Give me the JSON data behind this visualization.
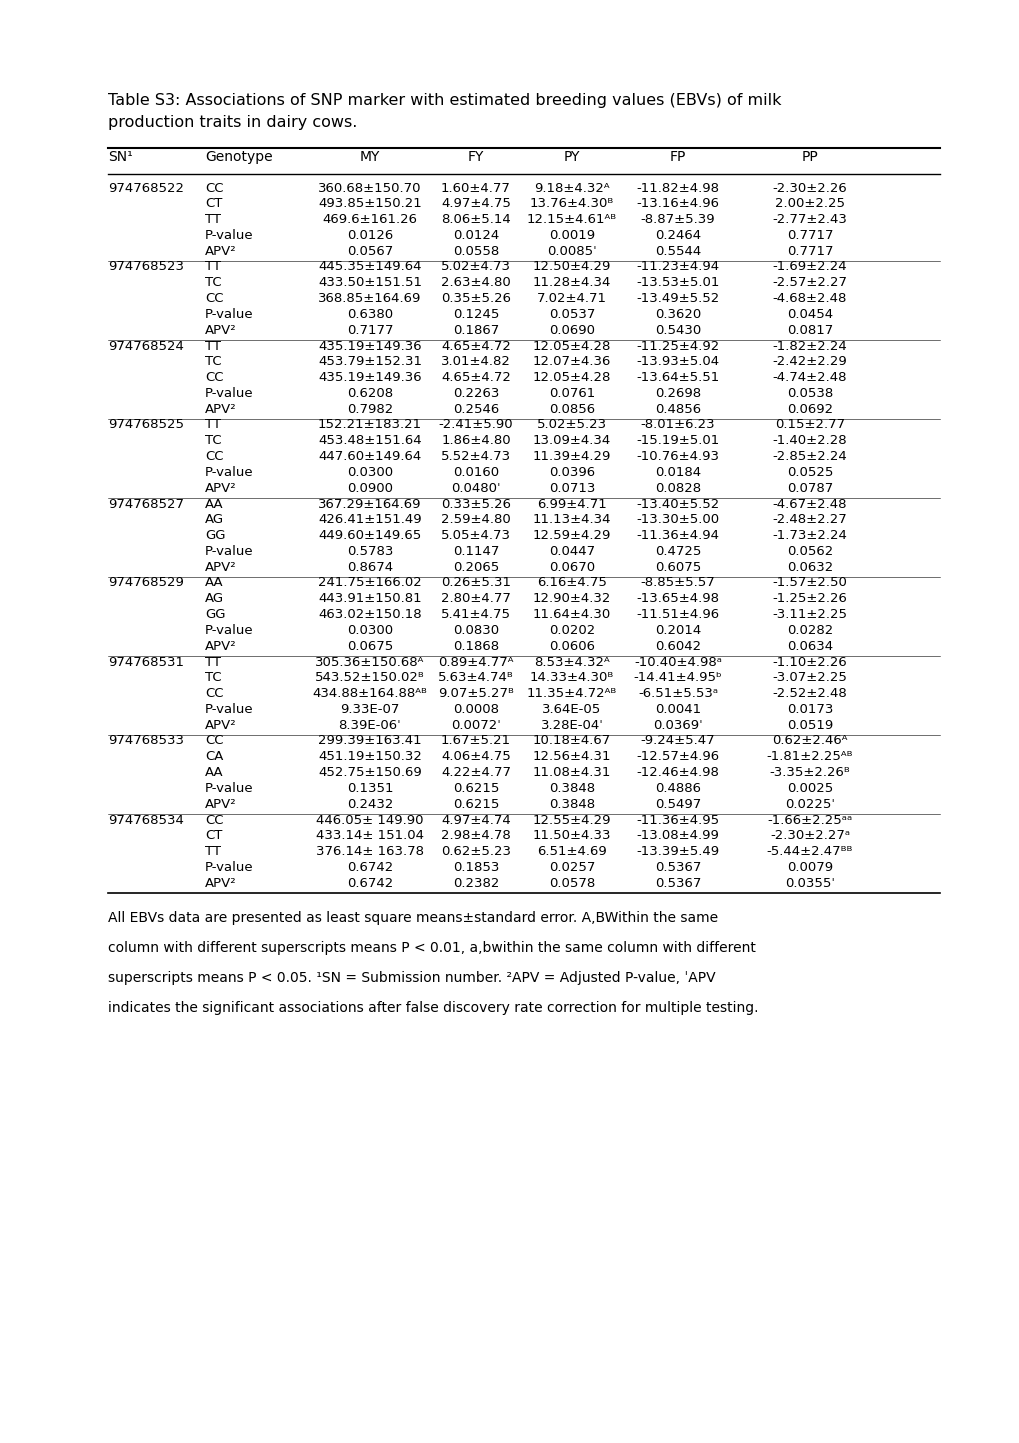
{
  "title_line1": "Table S3: Associations of SNP marker with estimated breeding values (EBVs) of milk",
  "title_line2": "production traits in dairy cows.",
  "columns": [
    "SN¹",
    "Genotype",
    "MY",
    "FY",
    "PY",
    "FP",
    "PP"
  ],
  "rows": [
    [
      "974768522",
      "CC",
      "360.68±150.70",
      "1.60±4.77",
      "9.18±4.32ᴬ",
      "-11.82±4.98",
      "-2.30±2.26"
    ],
    [
      "",
      "CT",
      "493.85±150.21",
      "4.97±4.75",
      "13.76±4.30ᴮ",
      "-13.16±4.96",
      "2.00±2.25"
    ],
    [
      "",
      "TT",
      "469.6±161.26",
      "8.06±5.14",
      "12.15±4.61ᴬᴮ",
      "-8.87±5.39",
      "-2.77±2.43"
    ],
    [
      "",
      "P-value",
      "0.0126",
      "0.0124",
      "0.0019",
      "0.2464",
      "0.7717"
    ],
    [
      "",
      "APV²",
      "0.0567",
      "0.0558",
      "0.0085ˈ",
      "0.5544",
      "0.7717"
    ],
    [
      "974768523",
      "TT",
      "445.35±149.64",
      "5.02±4.73",
      "12.50±4.29",
      "-11.23±4.94",
      "-1.69±2.24"
    ],
    [
      "",
      "TC",
      "433.50±151.51",
      "2.63±4.80",
      "11.28±4.34",
      "-13.53±5.01",
      "-2.57±2.27"
    ],
    [
      "",
      "CC",
      "368.85±164.69",
      "0.35±5.26",
      "7.02±4.71",
      "-13.49±5.52",
      "-4.68±2.48"
    ],
    [
      "",
      "P-value",
      "0.6380",
      "0.1245",
      "0.0537",
      "0.3620",
      "0.0454"
    ],
    [
      "",
      "APV²",
      "0.7177",
      "0.1867",
      "0.0690",
      "0.5430",
      "0.0817"
    ],
    [
      "974768524",
      "TT",
      "435.19±149.36",
      "4.65±4.72",
      "12.05±4.28",
      "-11.25±4.92",
      "-1.82±2.24"
    ],
    [
      "",
      "TC",
      "453.79±152.31",
      "3.01±4.82",
      "12.07±4.36",
      "-13.93±5.04",
      "-2.42±2.29"
    ],
    [
      "",
      "CC",
      "435.19±149.36",
      "4.65±4.72",
      "12.05±4.28",
      "-13.64±5.51",
      "-4.74±2.48"
    ],
    [
      "",
      "P-value",
      "0.6208",
      "0.2263",
      "0.0761",
      "0.2698",
      "0.0538"
    ],
    [
      "",
      "APV²",
      "0.7982",
      "0.2546",
      "0.0856",
      "0.4856",
      "0.0692"
    ],
    [
      "974768525",
      "TT",
      "152.21±183.21",
      "-2.41±5.90",
      "5.02±5.23",
      "-8.01±6.23",
      "0.15±2.77"
    ],
    [
      "",
      "TC",
      "453.48±151.64",
      "1.86±4.80",
      "13.09±4.34",
      "-15.19±5.01",
      "-1.40±2.28"
    ],
    [
      "",
      "CC",
      "447.60±149.64",
      "5.52±4.73",
      "11.39±4.29",
      "-10.76±4.93",
      "-2.85±2.24"
    ],
    [
      "",
      "P-value",
      "0.0300",
      "0.0160",
      "0.0396",
      "0.0184",
      "0.0525"
    ],
    [
      "",
      "APV²",
      "0.0900",
      "0.0480ˈ",
      "0.0713",
      "0.0828",
      "0.0787"
    ],
    [
      "974768527",
      "AA",
      "367.29±164.69",
      "0.33±5.26",
      "6.99±4.71",
      "-13.40±5.52",
      "-4.67±2.48"
    ],
    [
      "",
      "AG",
      "426.41±151.49",
      "2.59±4.80",
      "11.13±4.34",
      "-13.30±5.00",
      "-2.48±2.27"
    ],
    [
      "",
      "GG",
      "449.60±149.65",
      "5.05±4.73",
      "12.59±4.29",
      "-11.36±4.94",
      "-1.73±2.24"
    ],
    [
      "",
      "P-value",
      "0.5783",
      "0.1147",
      "0.0447",
      "0.4725",
      "0.0562"
    ],
    [
      "",
      "APV²",
      "0.8674",
      "0.2065",
      "0.0670",
      "0.6075",
      "0.0632"
    ],
    [
      "974768529",
      "AA",
      "241.75±166.02",
      "0.26±5.31",
      "6.16±4.75",
      "-8.85±5.57",
      "-1.57±2.50"
    ],
    [
      "",
      "AG",
      "443.91±150.81",
      "2.80±4.77",
      "12.90±4.32",
      "-13.65±4.98",
      "-1.25±2.26"
    ],
    [
      "",
      "GG",
      "463.02±150.18",
      "5.41±4.75",
      "11.64±4.30",
      "-11.51±4.96",
      "-3.11±2.25"
    ],
    [
      "",
      "P-value",
      "0.0300",
      "0.0830",
      "0.0202",
      "0.2014",
      "0.0282"
    ],
    [
      "",
      "APV²",
      "0.0675",
      "0.1868",
      "0.0606",
      "0.6042",
      "0.0634"
    ],
    [
      "974768531",
      "TT",
      "305.36±150.68ᴬ",
      "0.89±4.77ᴬ",
      "8.53±4.32ᴬ",
      "-10.40±4.98ᵃ",
      "-1.10±2.26"
    ],
    [
      "",
      "TC",
      "543.52±150.02ᴮ",
      "5.63±4.74ᴮ",
      "14.33±4.30ᴮ",
      "-14.41±4.95ᵇ",
      "-3.07±2.25"
    ],
    [
      "",
      "CC",
      "434.88±164.88ᴬᴮ",
      "9.07±5.27ᴮ",
      "11.35±4.72ᴬᴮ",
      "-6.51±5.53ᵃ",
      "-2.52±2.48"
    ],
    [
      "",
      "P-value",
      "9.33E-07",
      "0.0008",
      "3.64E-05",
      "0.0041",
      "0.0173"
    ],
    [
      "",
      "APV²",
      "8.39E-06ˈ",
      "0.0072ˈ",
      "3.28E-04ˈ",
      "0.0369ˈ",
      "0.0519"
    ],
    [
      "974768533",
      "CC",
      "299.39±163.41",
      "1.67±5.21",
      "10.18±4.67",
      "-9.24±5.47",
      "0.62±2.46ᴬ"
    ],
    [
      "",
      "CA",
      "451.19±150.32",
      "4.06±4.75",
      "12.56±4.31",
      "-12.57±4.96",
      "-1.81±2.25ᴬᴮ"
    ],
    [
      "",
      "AA",
      "452.75±150.69",
      "4.22±4.77",
      "11.08±4.31",
      "-12.46±4.98",
      "-3.35±2.26ᴮ"
    ],
    [
      "",
      "P-value",
      "0.1351",
      "0.6215",
      "0.3848",
      "0.4886",
      "0.0025"
    ],
    [
      "",
      "APV²",
      "0.2432",
      "0.6215",
      "0.3848",
      "0.5497",
      "0.0225ˈ"
    ],
    [
      "974768534",
      "CC",
      "446.05± 149.90",
      "4.97±4.74",
      "12.55±4.29",
      "-11.36±4.95",
      "-1.66±2.25ᵃᵃ"
    ],
    [
      "",
      "CT",
      "433.14± 151.04",
      "2.98±4.78",
      "11.50±4.33",
      "-13.08±4.99",
      "-2.30±2.27ᵃ"
    ],
    [
      "",
      "TT",
      "376.14± 163.78",
      "0.62±5.23",
      "6.51±4.69",
      "-13.39±5.49",
      "-5.44±2.47ᴮᴮ"
    ],
    [
      "",
      "P-value",
      "0.6742",
      "0.1853",
      "0.0257",
      "0.5367",
      "0.0079"
    ],
    [
      "",
      "APV²",
      "0.6742",
      "0.2382",
      "0.0578",
      "0.5367",
      "0.0355ˈ"
    ]
  ],
  "footnote_lines": [
    "All EBVs data are presented as least square means±standard error. A,BWithin the same",
    "column with different superscripts means P < 0.01, a,bwithin the same column with different",
    "superscripts means P < 0.05. ¹SN = Submission number. ²APV = Adjusted P-value, ˈAPV",
    "indicates the significant associations after false discovery rate correction for multiple testing."
  ]
}
